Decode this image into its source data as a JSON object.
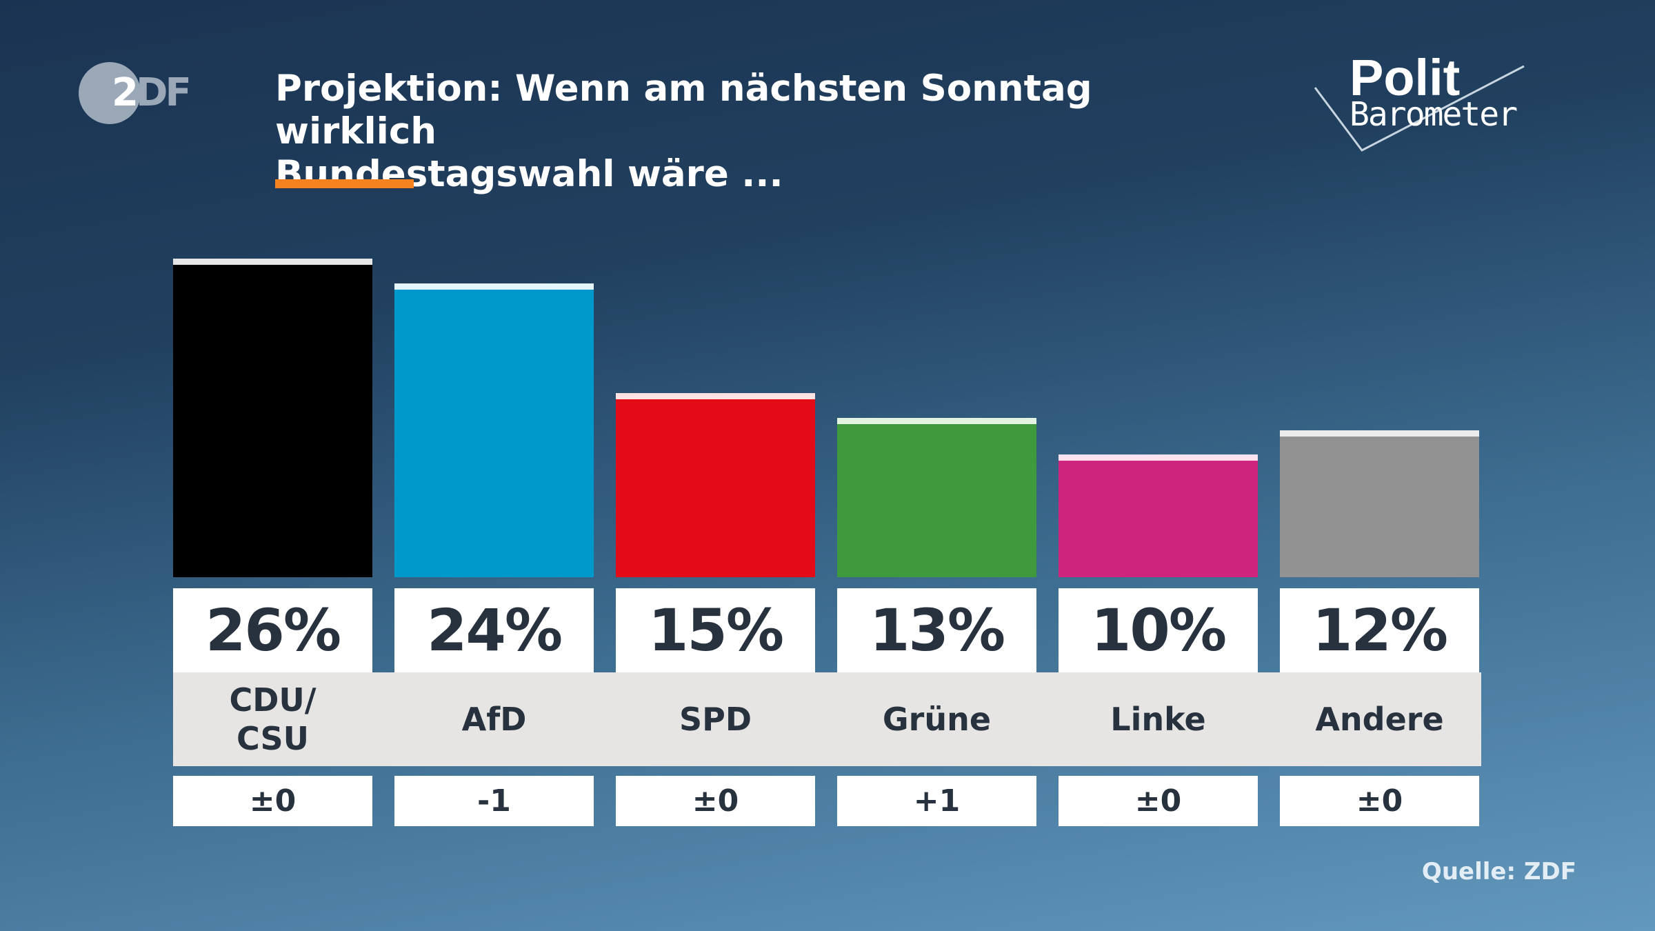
{
  "logo_left": "ZDF",
  "logo_right": {
    "line1": "Polit",
    "line2": "Barometer"
  },
  "title_line1": "Projektion: Wenn am nächsten Sonntag wirklich",
  "title_line2": "Bundestagswahl wäre ...",
  "accent_color": "#f5821f",
  "source": "Quelle: ZDF",
  "chart_data": {
    "type": "bar",
    "categories": [
      "CDU/\nCSU",
      "AfD",
      "SPD",
      "Grüne",
      "Linke",
      "Andere"
    ],
    "values": [
      26,
      24,
      15,
      13,
      10,
      12
    ],
    "value_labels": [
      "26%",
      "24%",
      "15%",
      "13%",
      "10%",
      "12%"
    ],
    "changes": [
      "±0",
      "-1",
      "±0",
      "+1",
      "±0",
      "±0"
    ],
    "colors": [
      "#000000",
      "#0099cc",
      "#e40b18",
      "#3f9a3d",
      "#cd247e",
      "#929292"
    ],
    "cap_colors": [
      "#e6e6e6",
      "#e3f6fc",
      "#ffe3e3",
      "#e3f3e3",
      "#fde3ef",
      "#ececec"
    ],
    "unit": "%"
  }
}
